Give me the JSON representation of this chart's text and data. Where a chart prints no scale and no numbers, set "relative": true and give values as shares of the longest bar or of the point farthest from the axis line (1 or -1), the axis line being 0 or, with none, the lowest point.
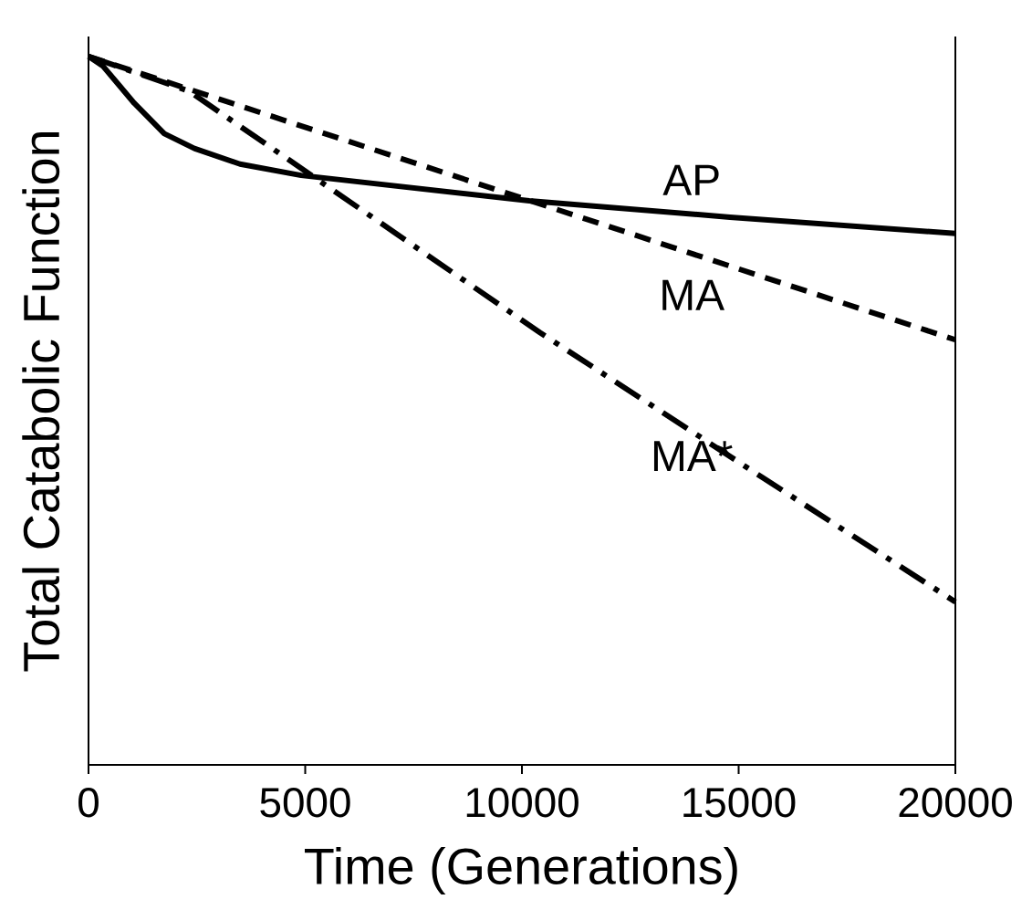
{
  "chart_data": {
    "type": "line",
    "relative": true,
    "xlabel": "Time (Generations)",
    "ylabel": "Total Catabolic Function",
    "xlim": [
      0,
      20000
    ],
    "xticks": [
      0,
      5000,
      10000,
      15000,
      20000
    ],
    "series": [
      {
        "name": "AP",
        "color": "#000000",
        "line_style": "solid",
        "x": [
          0,
          337,
          695,
          1053,
          1747,
          2442,
          3495,
          4905,
          10170,
          14800,
          20000
        ],
        "values": [
          1,
          0.986,
          0.96,
          0.934,
          0.891,
          0.87,
          0.848,
          0.832,
          0.796,
          0.773,
          0.75
        ]
      },
      {
        "name": "MA",
        "color": "#000000",
        "line_style": "dotted",
        "x": [
          0,
          20000
        ],
        "values": [
          1,
          0.6
        ]
      },
      {
        "name": "MA*",
        "color": "#000000",
        "line_style": "dashed",
        "x": [
          0,
          2316,
          10420,
          15537,
          20000
        ],
        "values": [
          1,
          0.951,
          0.61,
          0.406,
          0.23
        ]
      }
    ]
  }
}
